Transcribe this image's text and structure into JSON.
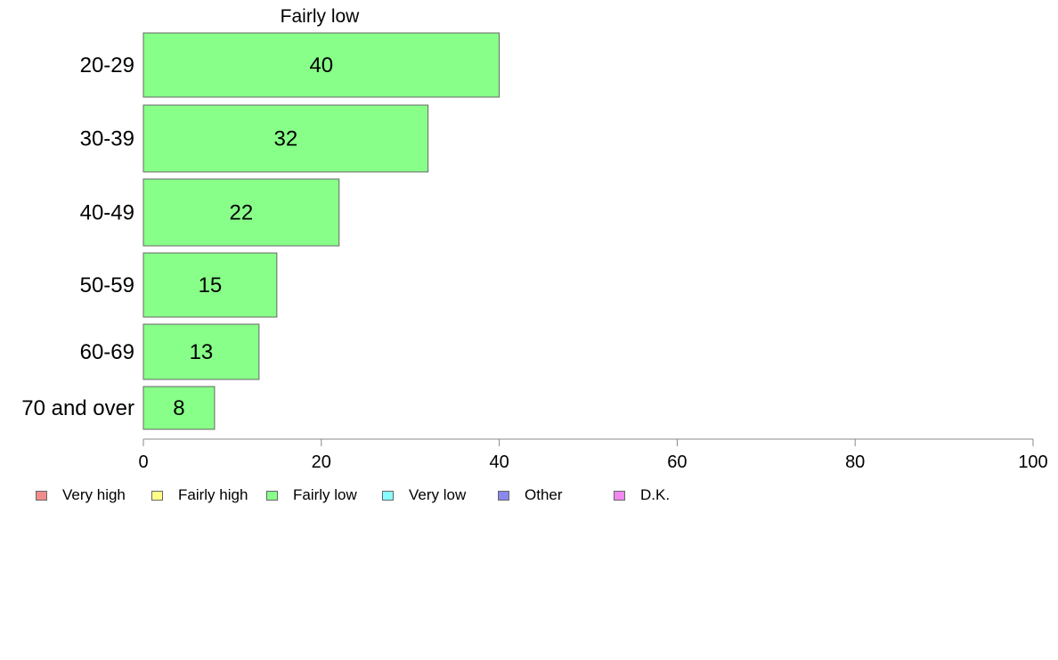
{
  "chart_data": {
    "type": "bar",
    "orientation": "horizontal",
    "title": "Fairly low",
    "categories": [
      "20-29",
      "30-39",
      "40-49",
      "50-59",
      "60-69",
      "70 and over"
    ],
    "series": [
      {
        "name": "Fairly low",
        "values": [
          40,
          32,
          22,
          15,
          13,
          8
        ],
        "color": "#88ff88"
      }
    ],
    "xlim": [
      0,
      100
    ],
    "xticks": [
      0,
      20,
      40,
      60,
      80,
      100
    ],
    "grid": false,
    "legend_position": "bottom-left",
    "legend": [
      {
        "label": "Very high",
        "color": "#f28c8c"
      },
      {
        "label": "Fairly high",
        "color": "#ffff88"
      },
      {
        "label": "Fairly low",
        "color": "#88ff88"
      },
      {
        "label": "Very low",
        "color": "#88ffff"
      },
      {
        "label": "Other",
        "color": "#8888ee"
      },
      {
        "label": "D.K.",
        "color": "#f288f2"
      }
    ]
  }
}
